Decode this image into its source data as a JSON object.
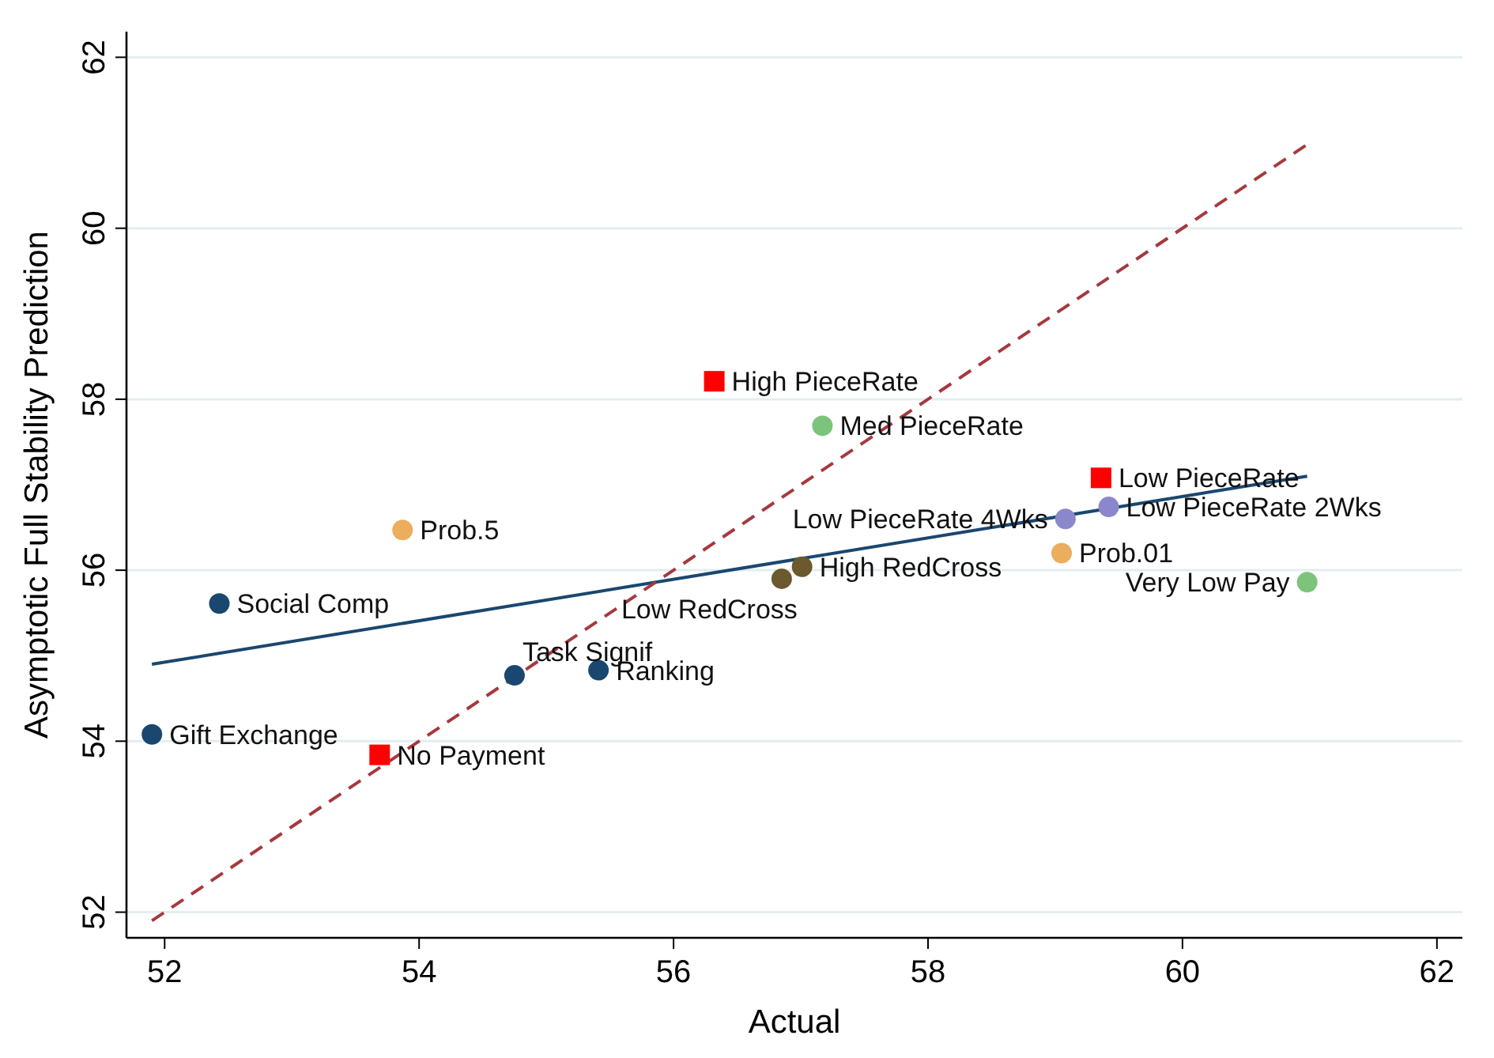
{
  "chart_data": {
    "type": "scatter",
    "xlabel": "Actual",
    "ylabel": "Asymptotic Full Stability Prediction",
    "xlim": [
      51.7,
      62.2
    ],
    "ylim": [
      51.7,
      62.3
    ],
    "xticks": [
      52,
      54,
      56,
      58,
      60,
      62
    ],
    "yticks": [
      52,
      54,
      56,
      58,
      60,
      62
    ],
    "grid": "y",
    "series": [
      {
        "type": "line",
        "color": "#1a476f",
        "x": [
          51.9,
          60.98
        ],
        "values": [
          54.9,
          57.1
        ],
        "line_style": "solid"
      },
      {
        "type": "line",
        "color": "#a5393f",
        "x": [
          51.9,
          60.98
        ],
        "values": [
          51.9,
          60.98
        ],
        "line_style": "dashed"
      },
      {
        "color": "#1a476f",
        "marker": "circle",
        "x": [
          51.9,
          52.43,
          54.75,
          55.41
        ],
        "values": [
          54.08,
          55.61,
          54.77,
          54.83
        ]
      },
      {
        "color": "#ff0000",
        "marker": "square",
        "x": [
          53.69,
          56.32,
          59.36
        ],
        "values": [
          53.84,
          58.21,
          57.08
        ]
      },
      {
        "color": "#7cc47c",
        "marker": "circle",
        "x": [
          57.17,
          60.98
        ],
        "values": [
          57.69,
          55.86
        ]
      },
      {
        "color": "#eaae5e",
        "marker": "circle",
        "x": [
          53.87,
          59.05
        ],
        "values": [
          56.47,
          56.2
        ]
      },
      {
        "color": "#8a87cc",
        "marker": "circle",
        "x": [
          59.08,
          59.42
        ],
        "values": [
          56.6,
          56.74
        ]
      },
      {
        "color": "#6b5a2e",
        "marker": "circle",
        "x": [
          56.85,
          57.01
        ],
        "values": [
          55.9,
          56.04
        ]
      }
    ],
    "annotations": [
      {
        "text": "Gift Exchange",
        "x": 51.9,
        "y": 54.08
      },
      {
        "text": "Social Comp",
        "x": 52.43,
        "y": 55.61
      },
      {
        "text": "Prob.5",
        "x": 53.87,
        "y": 56.47
      },
      {
        "text": "No Payment",
        "x": 53.69,
        "y": 53.84
      },
      {
        "text": "Task Signif",
        "x": 54.75,
        "y": 54.77
      },
      {
        "text": "Ranking",
        "x": 55.41,
        "y": 54.83
      },
      {
        "text": "High PieceRate",
        "x": 56.32,
        "y": 58.21
      },
      {
        "text": "Med PieceRate",
        "x": 57.17,
        "y": 57.69
      },
      {
        "text": "Low RedCross",
        "x": 56.85,
        "y": 55.9
      },
      {
        "text": "High RedCross",
        "x": 57.01,
        "y": 56.04
      },
      {
        "text": "Low PieceRate 4Wks",
        "x": 59.08,
        "y": 56.6
      },
      {
        "text": "Low PieceRate 2Wks",
        "x": 59.42,
        "y": 56.74
      },
      {
        "text": "Low PieceRate",
        "x": 59.36,
        "y": 57.08
      },
      {
        "text": "Prob.01",
        "x": 59.05,
        "y": 56.2
      },
      {
        "text": "Very Low Pay",
        "x": 60.98,
        "y": 55.86
      }
    ]
  }
}
